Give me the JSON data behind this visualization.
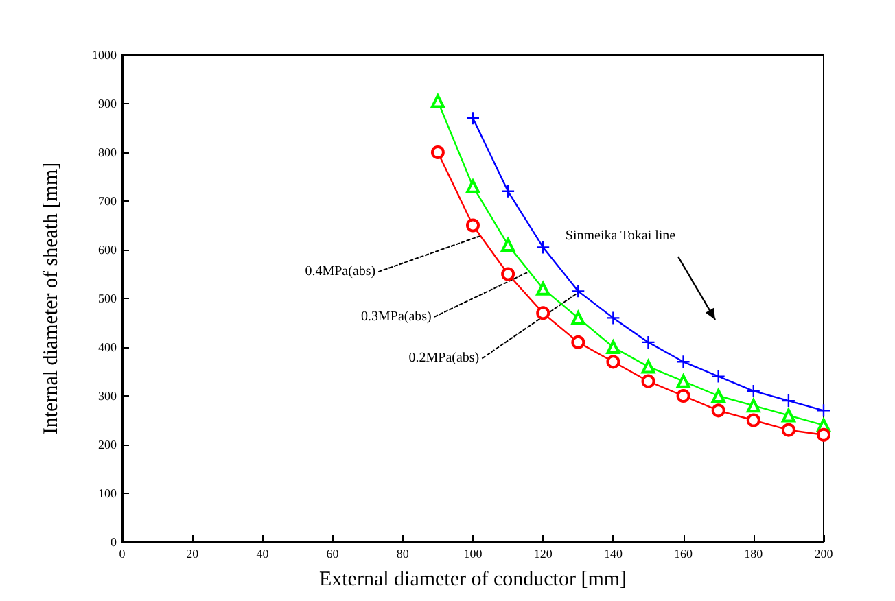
{
  "chart_data": {
    "type": "line",
    "xlabel": "External diameter of conductor [mm]",
    "ylabel": "Internal diameter of sheath [mm]",
    "xlim": [
      0,
      200
    ],
    "xticks": [
      0,
      20,
      40,
      60,
      80,
      100,
      120,
      140,
      160,
      180,
      200
    ],
    "ylim": [
      0,
      1000
    ],
    "yticks": [
      0,
      100,
      200,
      300,
      400,
      500,
      600,
      700,
      800,
      900,
      1000
    ],
    "grid": false,
    "line_style": "solid",
    "series": [
      {
        "color": "#0000ff",
        "marker": "cross",
        "x": [
          100,
          110,
          120,
          130,
          140,
          150,
          160,
          170,
          180,
          190,
          200
        ],
        "values": [
          870,
          720,
          605,
          515,
          460,
          410,
          370,
          340,
          310,
          290,
          270
        ]
      },
      {
        "color": "#00ff00",
        "marker": "triangle",
        "x": [
          90,
          100,
          110,
          120,
          130,
          140,
          150,
          160,
          170,
          180,
          190,
          200
        ],
        "values": [
          905,
          730,
          610,
          520,
          460,
          400,
          360,
          330,
          300,
          280,
          260,
          240
        ]
      },
      {
        "color": "#ff0000",
        "marker": "circle",
        "x": [
          90,
          100,
          110,
          120,
          130,
          140,
          150,
          160,
          170,
          180,
          190,
          200
        ],
        "values": [
          800,
          650,
          550,
          470,
          410,
          370,
          330,
          300,
          270,
          250,
          230,
          220
        ]
      }
    ],
    "annotations": [
      {
        "text": "0.4MPa(abs)",
        "x": 102,
        "y": 628
      },
      {
        "text": "0.3MPa(abs)",
        "x": 116,
        "y": 555
      },
      {
        "text": "0.2MPa(abs)",
        "x": 130,
        "y": 512
      },
      "Sinmeika Tokai line"
    ]
  }
}
